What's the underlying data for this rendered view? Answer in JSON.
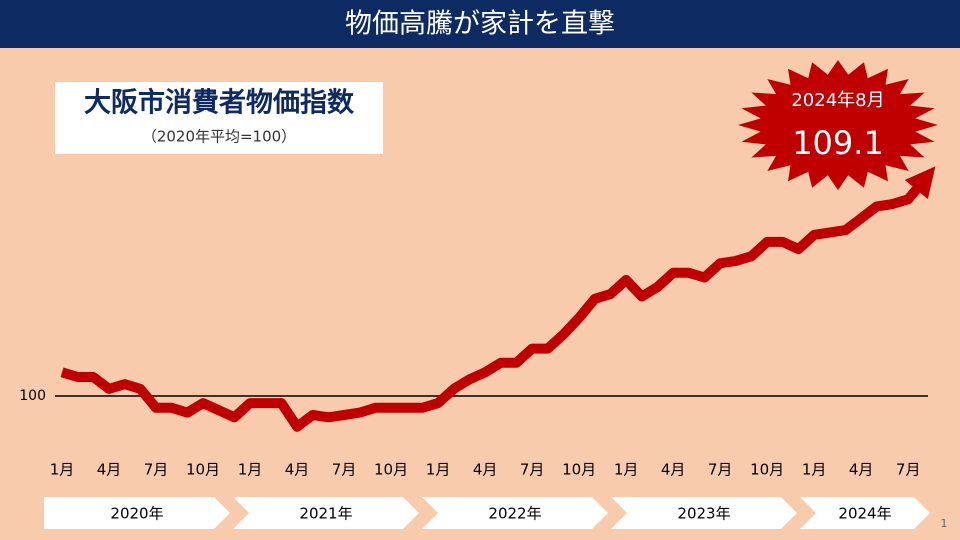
{
  "header": "物価高騰が家計を直撃",
  "page_number": "1",
  "chart_data": {
    "type": "line",
    "title": "大阪市消費者物価指数",
    "subtitle": "（2020年平均=100）",
    "annotation": "2024年8月",
    "categories": [
      "1月",
      null,
      null,
      "4月",
      null,
      null,
      "7月",
      null,
      null,
      "10月",
      null,
      null,
      "1月",
      null,
      null,
      "4月",
      null,
      null,
      "7月",
      null,
      null,
      "10月",
      null,
      null,
      "1月",
      null,
      null,
      "4月",
      null,
      null,
      "7月",
      null,
      null,
      "10月",
      null,
      null,
      "1月",
      null,
      null,
      "4月",
      null,
      null,
      "7月",
      null,
      null,
      "10月",
      null,
      null,
      "1月",
      null,
      null,
      "4月",
      null,
      null,
      "7月",
      null
    ],
    "years": [
      "2020年",
      "2021年",
      "2022年",
      "2023年",
      "2024年"
    ],
    "series": [
      {
        "color": "#c00000",
        "values": [
          101.0,
          100.8,
          100.8,
          100.3,
          100.5,
          100.3,
          99.5,
          99.5,
          99.3,
          99.7,
          99.4,
          99.1,
          99.7,
          99.7,
          99.7,
          98.7,
          99.2,
          99.1,
          99.2,
          99.3,
          99.5,
          99.5,
          99.5,
          99.5,
          99.7,
          100.3,
          100.7,
          101.0,
          101.4,
          101.4,
          102.0,
          102.0,
          102.6,
          103.3,
          104.1,
          104.3,
          104.9,
          104.2,
          104.6,
          105.2,
          105.2,
          105.0,
          105.6,
          105.7,
          105.9,
          106.5,
          106.5,
          106.2,
          106.8,
          106.9,
          107.0,
          107.5,
          108.0,
          108.1,
          108.3,
          109.1
        ]
      }
    ],
    "ylim": [
      98,
      110
    ],
    "yticks": [
      100
    ]
  }
}
